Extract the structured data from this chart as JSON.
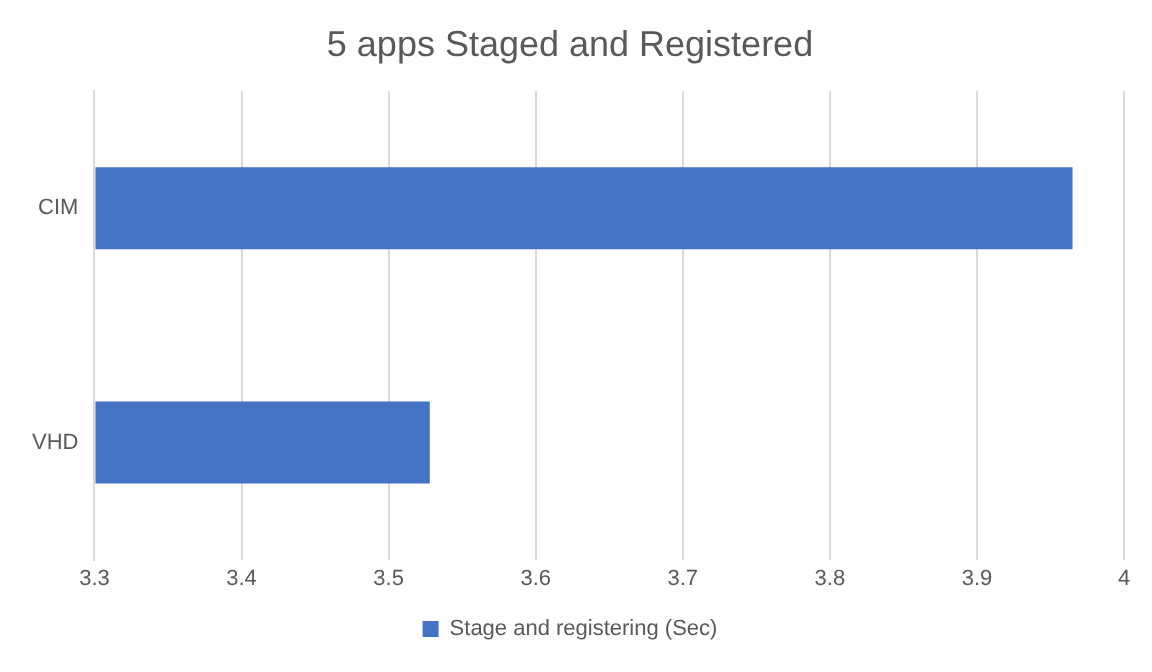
{
  "chart_data": {
    "type": "bar",
    "orientation": "horizontal",
    "title": "5 apps Staged and Registered",
    "categories": [
      "CIM",
      "VHD"
    ],
    "series": [
      {
        "name": "Stage and registering (Sec)",
        "color": "#4472c4",
        "values": [
          3.965,
          3.528
        ]
      }
    ],
    "xlim": [
      3.3,
      4
    ],
    "xticks": [
      3.3,
      3.4,
      3.5,
      3.6,
      3.7,
      3.8,
      3.9,
      4
    ],
    "grid": "x",
    "legend": "bottom"
  }
}
